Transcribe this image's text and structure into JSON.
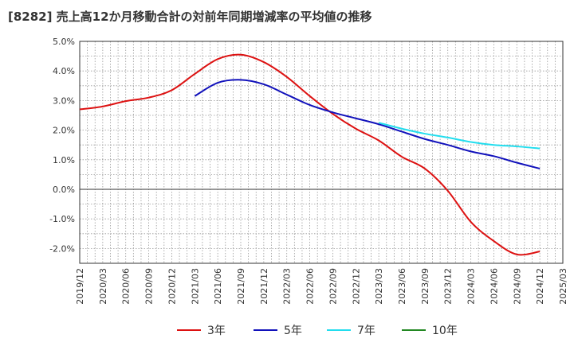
{
  "title": "[8282]  売上高12か月移動合計の対前年同期増減率の平均値の推移",
  "chart_data": {
    "type": "line",
    "title": "[8282]  売上高12か月移動合計の対前年同期増減率の平均値の推移",
    "xlabel": "",
    "ylabel": "",
    "ylim": [
      -2.5,
      5.0
    ],
    "y_ticks": [
      5.0,
      4.0,
      3.0,
      2.0,
      1.0,
      0.0,
      -1.0,
      -2.0
    ],
    "y_tick_labels": [
      "5.0%",
      "4.0%",
      "3.0%",
      "2.0%",
      "1.0%",
      "0.0%",
      "-1.0%",
      "-2.0%"
    ],
    "x_range": [
      "2019/12",
      "2025/03"
    ],
    "x_tick_labels": [
      "2019/12",
      "2020/03",
      "2020/06",
      "2020/09",
      "2020/12",
      "2021/03",
      "2021/06",
      "2021/09",
      "2021/12",
      "2022/03",
      "2022/06",
      "2022/09",
      "2022/12",
      "2023/03",
      "2023/06",
      "2023/09",
      "2023/12",
      "2024/03",
      "2024/06",
      "2024/09",
      "2024/12",
      "2025/03"
    ],
    "grid": true,
    "legend_position": "bottom",
    "series": [
      {
        "name": "3年",
        "color": "#dd1111",
        "points": [
          [
            "2019/12",
            2.7
          ],
          [
            "2020/03",
            2.8
          ],
          [
            "2020/06",
            2.98
          ],
          [
            "2020/09",
            3.1
          ],
          [
            "2020/12",
            3.35
          ],
          [
            "2021/03",
            3.9
          ],
          [
            "2021/06",
            4.4
          ],
          [
            "2021/09",
            4.55
          ],
          [
            "2021/12",
            4.3
          ],
          [
            "2022/03",
            3.8
          ],
          [
            "2022/06",
            3.15
          ],
          [
            "2022/09",
            2.55
          ],
          [
            "2022/12",
            2.05
          ],
          [
            "2023/03",
            1.65
          ],
          [
            "2023/06",
            1.1
          ],
          [
            "2023/09",
            0.7
          ],
          [
            "2023/12",
            -0.05
          ],
          [
            "2024/03",
            -1.1
          ],
          [
            "2024/06",
            -1.75
          ],
          [
            "2024/09",
            -2.2
          ],
          [
            "2024/12",
            -2.1
          ]
        ]
      },
      {
        "name": "5年",
        "color": "#1111bb",
        "points": [
          [
            "2021/03",
            3.15
          ],
          [
            "2021/06",
            3.6
          ],
          [
            "2021/09",
            3.7
          ],
          [
            "2021/12",
            3.55
          ],
          [
            "2022/03",
            3.2
          ],
          [
            "2022/06",
            2.85
          ],
          [
            "2022/09",
            2.6
          ],
          [
            "2022/12",
            2.4
          ],
          [
            "2023/03",
            2.2
          ],
          [
            "2023/06",
            1.95
          ],
          [
            "2023/09",
            1.7
          ],
          [
            "2023/12",
            1.5
          ],
          [
            "2024/03",
            1.28
          ],
          [
            "2024/06",
            1.12
          ],
          [
            "2024/09",
            0.9
          ],
          [
            "2024/12",
            0.7
          ]
        ]
      },
      {
        "name": "7年",
        "color": "#22ddee",
        "points": [
          [
            "2023/03",
            2.25
          ],
          [
            "2023/06",
            2.05
          ],
          [
            "2023/09",
            1.88
          ],
          [
            "2023/12",
            1.75
          ],
          [
            "2024/03",
            1.6
          ],
          [
            "2024/06",
            1.5
          ],
          [
            "2024/09",
            1.45
          ],
          [
            "2024/12",
            1.38
          ]
        ]
      },
      {
        "name": "10年",
        "color": "#228822",
        "points": []
      }
    ]
  }
}
